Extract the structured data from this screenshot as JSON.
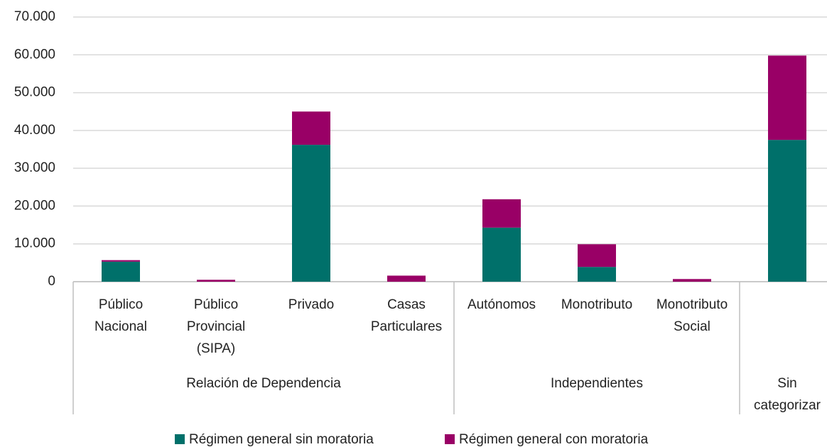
{
  "chart_data": {
    "type": "stacked-bar",
    "groups": [
      {
        "name": [
          "Relación de Dependencia"
        ],
        "categories": [
          [
            "Público",
            "Nacional"
          ],
          [
            "Público",
            "Provincial",
            "(SIPA)"
          ],
          [
            "Privado"
          ],
          [
            "Casas",
            "Particulares"
          ]
        ]
      },
      {
        "name": [
          "Independientes"
        ],
        "categories": [
          [
            "Autónomos"
          ],
          [
            "Monotributo"
          ],
          [
            "Monotributo",
            "Social"
          ]
        ]
      },
      {
        "name": [
          "Sin",
          "categorizar"
        ],
        "categories": [
          null
        ]
      }
    ],
    "series": [
      {
        "name": "Régimen general sin moratoria",
        "color": "#00706a",
        "values": [
          5300,
          0,
          36200,
          0,
          14300,
          3900,
          0,
          37500
        ]
      },
      {
        "name": "Régimen general con moratoria",
        "color": "#990066",
        "values": [
          400,
          500,
          8800,
          1600,
          7500,
          6000,
          700,
          22300
        ]
      }
    ],
    "ylim": [
      0,
      70000
    ],
    "yticks": [
      0,
      {
        "value": 10000,
        "label": "10.000"
      },
      {
        "value": 20000,
        "label": "20.000"
      },
      {
        "value": 30000,
        "label": "30.000"
      },
      {
        "value": 40000,
        "label": "40.000"
      },
      {
        "value": 50000,
        "label": "50.000"
      },
      {
        "value": 60000,
        "label": "60.000"
      },
      {
        "value": 70000,
        "label": "70.000"
      }
    ],
    "grid": true
  }
}
